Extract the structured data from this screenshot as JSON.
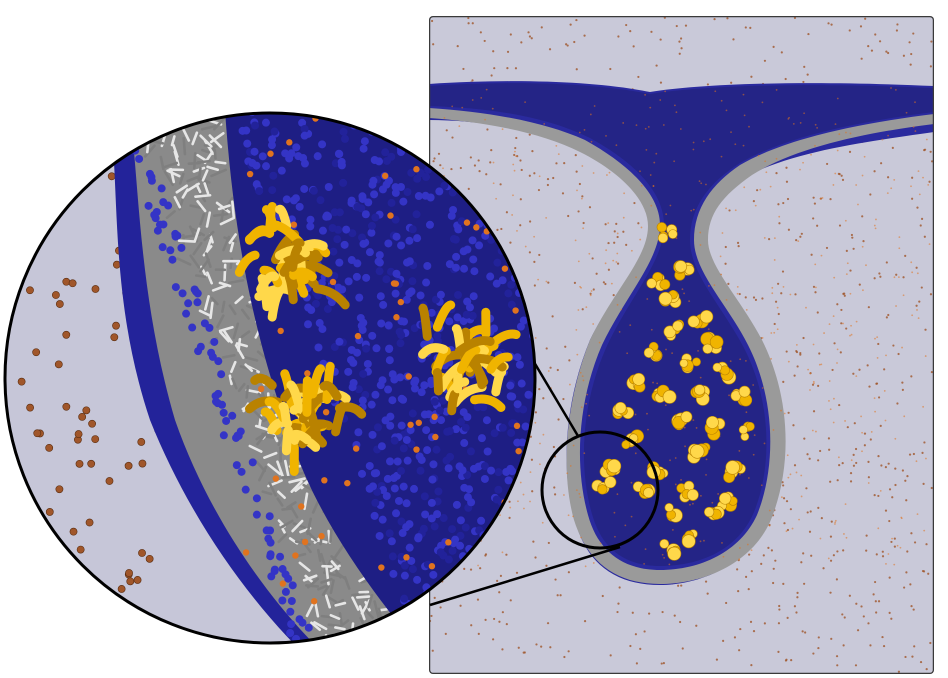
{
  "figure": {
    "colors": {
      "solvent": "#c9c9d9",
      "solvent_dark": "#b9b9cc",
      "ion": "#a0562a",
      "headgroup": "#22229a",
      "headgroup_light": "#3434c6",
      "tail_light": "#e6e6e6",
      "tail_dark": "#7f7f7f",
      "protein": "#f0b400",
      "protein_light": "#ffd84a",
      "protein_dark": "#b98200",
      "ion_orange": "#e0731f",
      "frame": "#3a3a3a",
      "outline": "#000000"
    }
  }
}
